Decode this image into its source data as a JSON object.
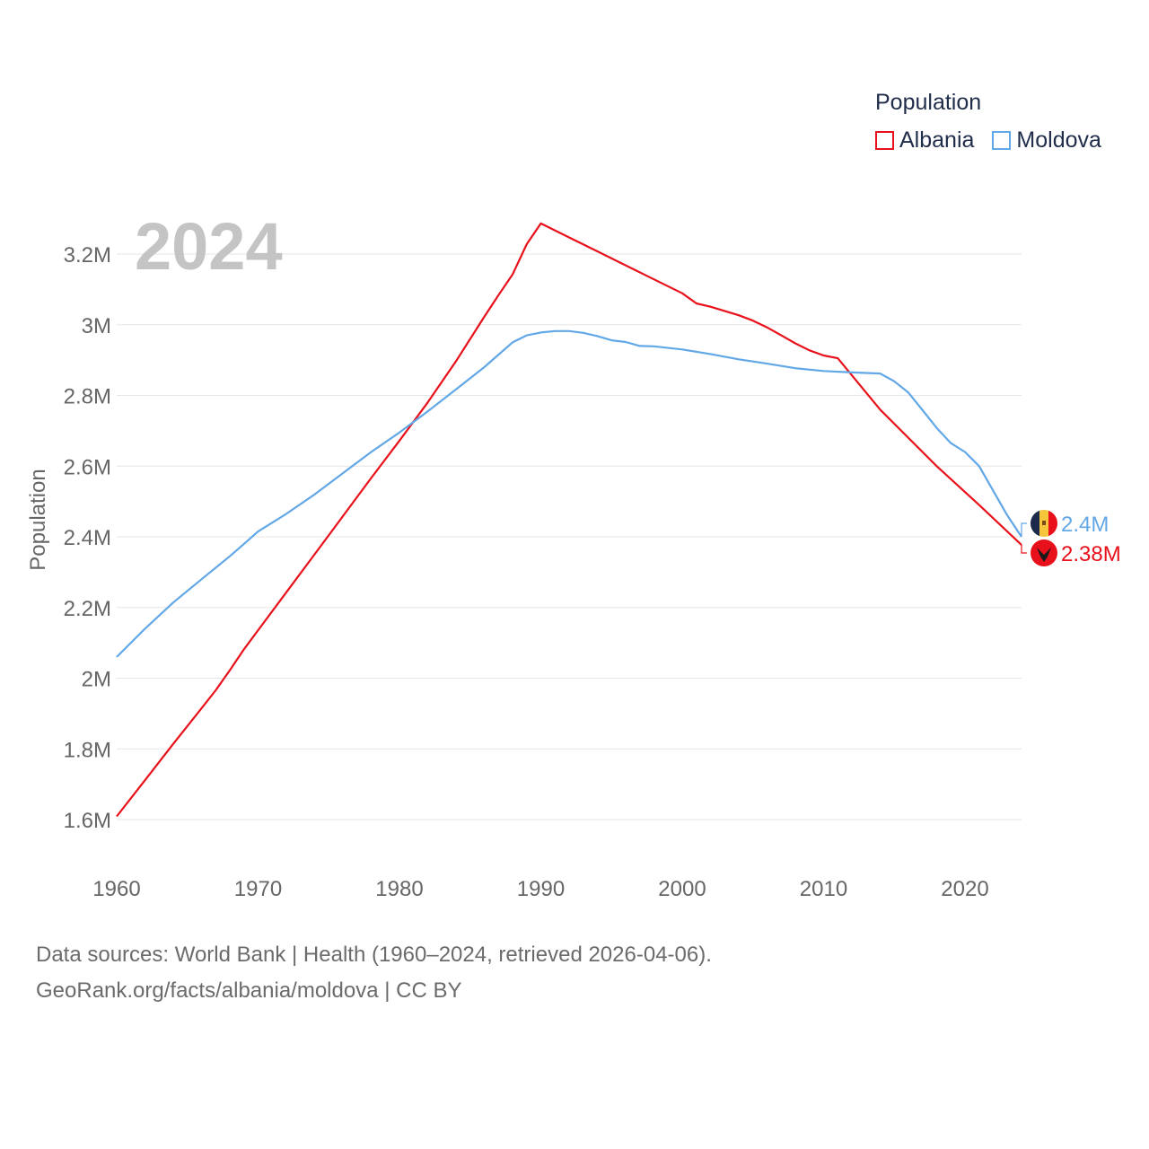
{
  "colors": {
    "albania": "#e8111b",
    "moldova": "#62a7e6",
    "grid": "#e6e6e6",
    "axis_text": "#666666",
    "year_text": "#c4c4c4"
  },
  "legend": {
    "title": "Population"
  },
  "chart_data": {
    "type": "line",
    "title": "Population",
    "year_overlay": "2024",
    "xlabel": "",
    "ylabel": "Population",
    "xlim": [
      1960,
      2024
    ],
    "ylim": [
      1500000,
      3300000
    ],
    "x_ticks": [
      {
        "value": 1960,
        "label": "1960"
      },
      {
        "value": 1970,
        "label": "1970"
      },
      {
        "value": 1980,
        "label": "1980"
      },
      {
        "value": 1990,
        "label": "1990"
      },
      {
        "value": 2000,
        "label": "2000"
      },
      {
        "value": 2010,
        "label": "2010"
      },
      {
        "value": 2020,
        "label": "2020"
      }
    ],
    "y_ticks": [
      {
        "value": 1600000,
        "label": "1.6M"
      },
      {
        "value": 1800000,
        "label": "1.8M"
      },
      {
        "value": 2000000,
        "label": "2M"
      },
      {
        "value": 2200000,
        "label": "2.2M"
      },
      {
        "value": 2400000,
        "label": "2.4M"
      },
      {
        "value": 2600000,
        "label": "2.6M"
      },
      {
        "value": 2800000,
        "label": "2.8M"
      },
      {
        "value": 3000000,
        "label": "3M"
      },
      {
        "value": 3200000,
        "label": "3.2M"
      }
    ],
    "series": [
      {
        "name": "Albania",
        "color": "#e8111b",
        "end_label": "2.38M",
        "points": [
          [
            1960,
            1608800
          ],
          [
            1962,
            1711300
          ],
          [
            1964,
            1814100
          ],
          [
            1966,
            1914600
          ],
          [
            1967,
            1965600
          ],
          [
            1968,
            2022300
          ],
          [
            1969,
            2081700
          ],
          [
            1970,
            2135500
          ],
          [
            1972,
            2243100
          ],
          [
            1974,
            2350600
          ],
          [
            1976,
            2458300
          ],
          [
            1978,
            2566300
          ],
          [
            1980,
            2671900
          ],
          [
            1982,
            2780100
          ],
          [
            1984,
            2896700
          ],
          [
            1986,
            3022600
          ],
          [
            1987,
            3083600
          ],
          [
            1988,
            3142100
          ],
          [
            1989,
            3227900
          ],
          [
            1990,
            3286500
          ],
          [
            1992,
            3247000
          ],
          [
            1994,
            3207600
          ],
          [
            1996,
            3168000
          ],
          [
            1998,
            3128500
          ],
          [
            2000,
            3089000
          ],
          [
            2001,
            3060200
          ],
          [
            2002,
            3051000
          ],
          [
            2004,
            3026900
          ],
          [
            2005,
            3011500
          ],
          [
            2006,
            2992500
          ],
          [
            2007,
            2970000
          ],
          [
            2008,
            2947300
          ],
          [
            2009,
            2927500
          ],
          [
            2010,
            2913000
          ],
          [
            2011,
            2905200
          ],
          [
            2014,
            2760000
          ],
          [
            2018,
            2600000
          ],
          [
            2021,
            2490000
          ],
          [
            2024,
            2377000
          ]
        ]
      },
      {
        "name": "Moldova",
        "color": "#62a7e6",
        "end_label": "2.4M",
        "points": [
          [
            1960,
            2060000
          ],
          [
            1962,
            2140000
          ],
          [
            1964,
            2214000
          ],
          [
            1966,
            2280000
          ],
          [
            1968,
            2345000
          ],
          [
            1969,
            2380000
          ],
          [
            1970,
            2415000
          ],
          [
            1972,
            2465000
          ],
          [
            1974,
            2520000
          ],
          [
            1976,
            2580000
          ],
          [
            1978,
            2640000
          ],
          [
            1980,
            2695000
          ],
          [
            1982,
            2755000
          ],
          [
            1984,
            2817000
          ],
          [
            1986,
            2880000
          ],
          [
            1988,
            2950000
          ],
          [
            1989,
            2970000
          ],
          [
            1990,
            2978000
          ],
          [
            1991,
            2982000
          ],
          [
            1992,
            2982000
          ],
          [
            1993,
            2977000
          ],
          [
            1994,
            2968000
          ],
          [
            1995,
            2956000
          ],
          [
            1996,
            2951000
          ],
          [
            1997,
            2940000
          ],
          [
            1998,
            2939000
          ],
          [
            2000,
            2930000
          ],
          [
            2002,
            2917000
          ],
          [
            2004,
            2902000
          ],
          [
            2006,
            2890000
          ],
          [
            2008,
            2877000
          ],
          [
            2010,
            2869000
          ],
          [
            2012,
            2865000
          ],
          [
            2014,
            2862000
          ],
          [
            2015,
            2840000
          ],
          [
            2016,
            2808000
          ],
          [
            2017,
            2758000
          ],
          [
            2018,
            2708000
          ],
          [
            2019,
            2665000
          ],
          [
            2020,
            2640000
          ],
          [
            2021,
            2600000
          ],
          [
            2022,
            2530000
          ],
          [
            2023,
            2460000
          ],
          [
            2024,
            2400000
          ]
        ]
      }
    ]
  },
  "source": {
    "line1": "Data sources: World Bank | Health (1960–2024, retrieved 2026-04-06).",
    "line2": "GeoRank.org/facts/albania/moldova | CC BY"
  }
}
